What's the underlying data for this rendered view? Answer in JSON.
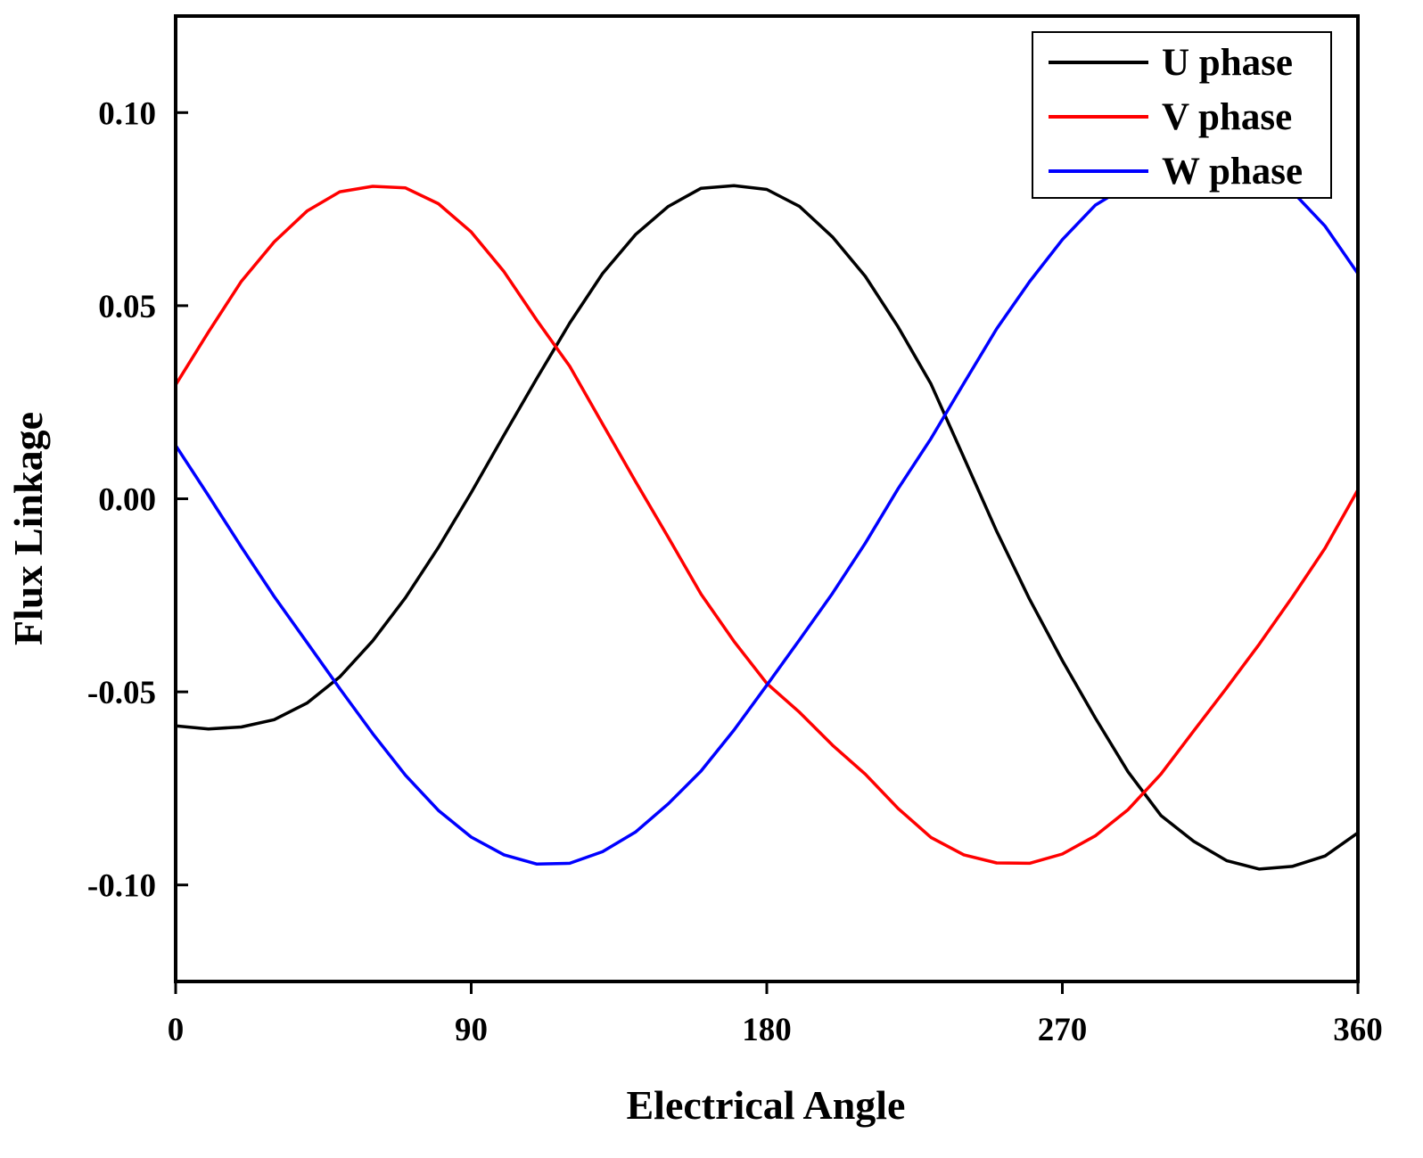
{
  "chart_data": {
    "type": "line",
    "title": "",
    "xlabel": "Electrical Angle",
    "ylabel": "Flux Linkage",
    "xlim": [
      0,
      360
    ],
    "ylim": [
      -0.125,
      0.125
    ],
    "xticks": [
      "0",
      "90",
      "180",
      "270",
      "360"
    ],
    "yticks": [
      "0.10",
      "0.05",
      "0.00",
      "-0.05",
      "-0.10"
    ],
    "ytick_values": [
      0.1,
      0.05,
      0.0,
      -0.05,
      -0.1
    ],
    "xtick_values": [
      0,
      90,
      180,
      270,
      360
    ],
    "grid": false,
    "legend_position": "top-right",
    "x": [
      0,
      10,
      20,
      30,
      40,
      50,
      60,
      70,
      80,
      90,
      100,
      110,
      120,
      130,
      140,
      150,
      160,
      170,
      180,
      190,
      200,
      210,
      220,
      230,
      240,
      250,
      260,
      270,
      280,
      290,
      300,
      310,
      320,
      330,
      340,
      350,
      360
    ],
    "series": [
      {
        "name": "U phase",
        "color": "#000000",
        "values": [
          -0.0588,
          -0.0596,
          -0.0591,
          -0.0572,
          -0.0529,
          -0.0461,
          -0.0368,
          -0.0256,
          -0.0126,
          0.0016,
          0.0165,
          0.0312,
          0.0455,
          0.0583,
          0.0684,
          0.0757,
          0.0804,
          0.0811,
          0.0801,
          0.0757,
          0.0678,
          0.0576,
          0.0445,
          0.0297,
          0.0107,
          -0.0084,
          -0.026,
          -0.0419,
          -0.0567,
          -0.0707,
          -0.082,
          -0.0887,
          -0.0937,
          -0.0959,
          -0.0952,
          -0.0925,
          -0.0865
        ]
      },
      {
        "name": "V phase",
        "color": "#ff0000",
        "values": [
          0.0295,
          0.0432,
          0.0563,
          0.0665,
          0.0745,
          0.0795,
          0.0809,
          0.0805,
          0.0764,
          0.0691,
          0.0588,
          0.0462,
          0.0343,
          0.0194,
          0.0045,
          -0.01,
          -0.0247,
          -0.0369,
          -0.0478,
          -0.0553,
          -0.0638,
          -0.0713,
          -0.0802,
          -0.0877,
          -0.0922,
          -0.0943,
          -0.0944,
          -0.092,
          -0.0873,
          -0.0805,
          -0.0713,
          -0.0601,
          -0.049,
          -0.0376,
          -0.0255,
          -0.0128,
          0.0023
        ]
      },
      {
        "name": "W phase",
        "color": "#0000ff",
        "values": [
          0.0138,
          0.0008,
          -0.0125,
          -0.0253,
          -0.0372,
          -0.0492,
          -0.0608,
          -0.0716,
          -0.0807,
          -0.0876,
          -0.0922,
          -0.0946,
          -0.0944,
          -0.0914,
          -0.0863,
          -0.079,
          -0.0705,
          -0.0599,
          -0.0483,
          -0.0365,
          -0.0245,
          -0.0115,
          0.0026,
          0.0156,
          0.0299,
          0.044,
          0.0562,
          0.0671,
          0.076,
          0.0812,
          0.0822,
          0.0805,
          0.0814,
          0.083,
          0.0796,
          0.0706,
          0.0583
        ]
      }
    ]
  }
}
